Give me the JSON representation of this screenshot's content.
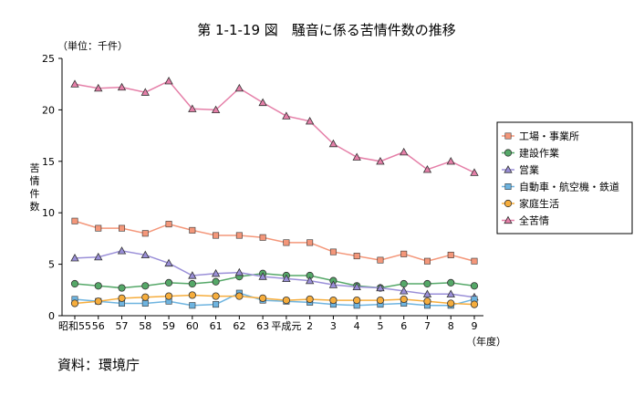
{
  "chart_data": {
    "type": "line",
    "title": "第 1-1-19 図　騒音に係る苦情件数の推移",
    "unit_label": "（単位：千件）",
    "ylabel": "苦情件数",
    "xlabel": "（年度）",
    "ylim": [
      0,
      25
    ],
    "yticks": [
      "0",
      "5",
      "10",
      "15",
      "20",
      "25"
    ],
    "categories": [
      "昭和55",
      "56",
      "57",
      "58",
      "59",
      "60",
      "61",
      "62",
      "63",
      "平成元",
      "2",
      "3",
      "4",
      "5",
      "6",
      "7",
      "8",
      "9"
    ],
    "grid": "none",
    "legend_position": "right",
    "series": [
      {
        "name": "工場・事業所",
        "marker": "square",
        "color": "#f4977a",
        "values": [
          9.2,
          8.5,
          8.5,
          8.0,
          8.9,
          8.3,
          7.8,
          7.8,
          7.6,
          7.1,
          7.1,
          6.2,
          5.8,
          5.4,
          6.0,
          5.3,
          5.9,
          5.3
        ]
      },
      {
        "name": "建設作業",
        "marker": "circle",
        "color": "#55a868",
        "values": [
          3.1,
          2.9,
          2.7,
          2.9,
          3.2,
          3.1,
          3.3,
          3.8,
          4.1,
          3.9,
          3.9,
          3.4,
          2.9,
          2.7,
          3.1,
          3.1,
          3.2,
          2.9
        ]
      },
      {
        "name": "営業",
        "marker": "triangle",
        "color": "#9a8fd8",
        "values": [
          5.6,
          5.7,
          6.3,
          5.9,
          5.1,
          3.9,
          4.1,
          4.2,
          3.8,
          3.6,
          3.4,
          3.0,
          2.8,
          2.7,
          2.4,
          2.1,
          2.1,
          1.8
        ]
      },
      {
        "name": "自動車・航空機・鉄道",
        "marker": "square",
        "color": "#6eb4e0",
        "values": [
          1.6,
          1.4,
          1.2,
          1.2,
          1.4,
          1.0,
          1.1,
          2.2,
          1.5,
          1.4,
          1.3,
          1.1,
          1.0,
          1.1,
          1.2,
          1.0,
          1.0,
          1.6
        ]
      },
      {
        "name": "家庭生活",
        "marker": "circle",
        "color": "#f6ad3c",
        "values": [
          1.2,
          1.4,
          1.7,
          1.8,
          1.9,
          2.0,
          1.9,
          1.9,
          1.7,
          1.5,
          1.6,
          1.5,
          1.5,
          1.5,
          1.6,
          1.4,
          1.2,
          1.1
        ]
      },
      {
        "name": "全苦情",
        "marker": "triangle",
        "color": "#e57fa8",
        "values": [
          22.5,
          22.1,
          22.2,
          21.7,
          22.8,
          20.1,
          20.0,
          22.1,
          20.7,
          19.4,
          18.9,
          16.7,
          15.4,
          15.0,
          15.9,
          14.2,
          15.0,
          13.9
        ]
      }
    ]
  },
  "source": "資料：環境庁"
}
